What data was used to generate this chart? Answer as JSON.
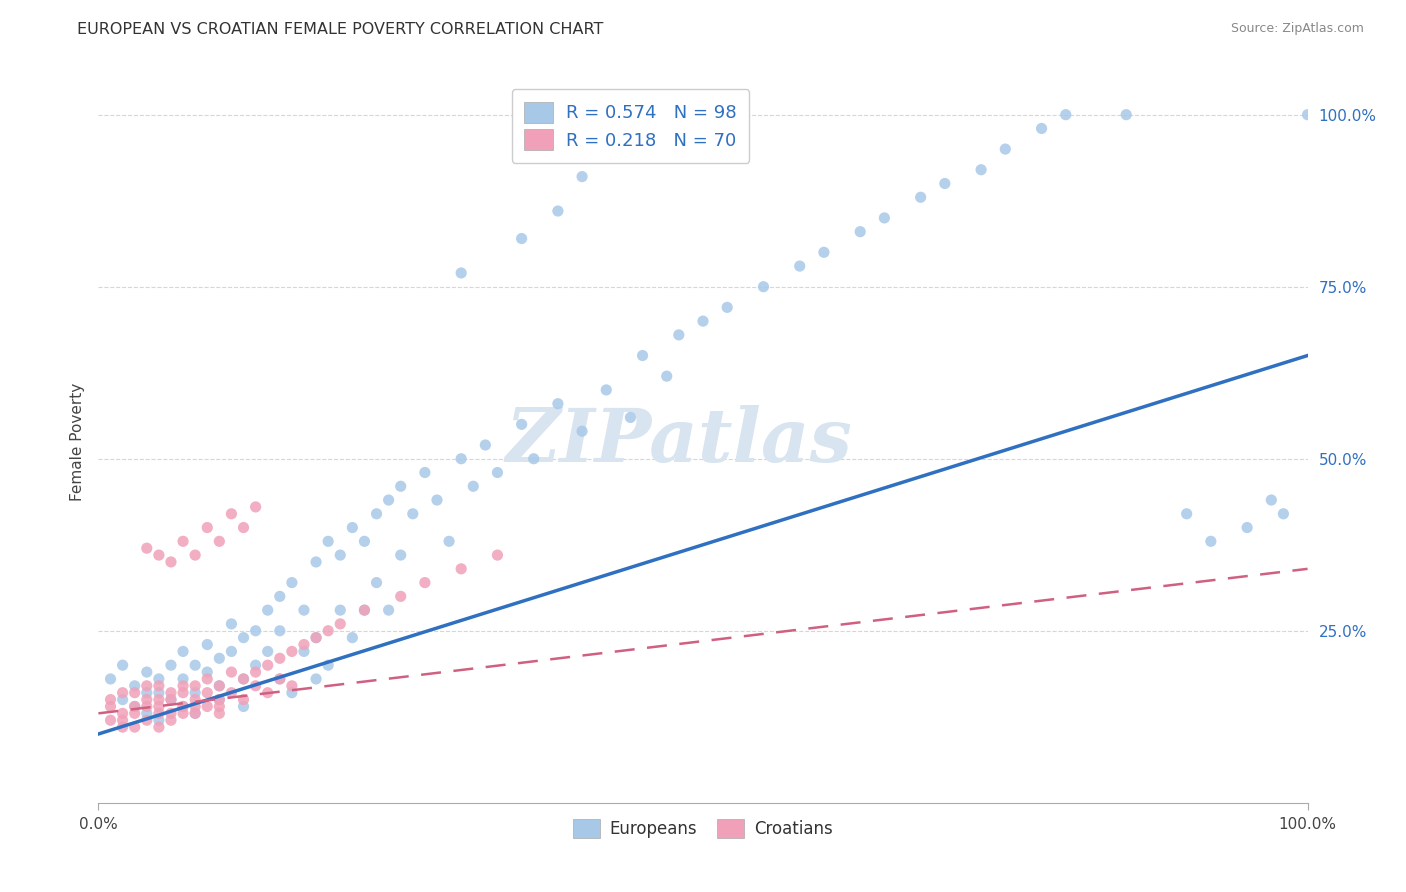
{
  "title": "EUROPEAN VS CROATIAN FEMALE POVERTY CORRELATION CHART",
  "source": "Source: ZipAtlas.com",
  "ylabel": "Female Poverty",
  "xlim": [
    0,
    1
  ],
  "ylim": [
    0,
    1.05
  ],
  "ytick_positions": [
    0.25,
    0.5,
    0.75,
    1.0
  ],
  "ytick_labels": [
    "25.0%",
    "50.0%",
    "75.0%",
    "100.0%"
  ],
  "legend_blue_label": "R = 0.574   N = 98",
  "legend_pink_label": "R = 0.218   N = 70",
  "europeans_label": "Europeans",
  "croatians_label": "Croatians",
  "blue_color": "#a8c8e8",
  "pink_color": "#f0a0b8",
  "blue_line_color": "#3070c0",
  "pink_line_color": "#d06080",
  "watermark": "ZIPatlas",
  "watermark_color": "#d8e4f0",
  "background_color": "#ffffff",
  "grid_color": "#cccccc",
  "blue_line_x0": 0.0,
  "blue_line_y0": 0.1,
  "blue_line_x1": 1.0,
  "blue_line_y1": 0.65,
  "pink_line_x0": 0.0,
  "pink_line_y0": 0.13,
  "pink_line_x1": 1.0,
  "pink_line_y1": 0.34,
  "blue_scatter_x": [
    0.01,
    0.02,
    0.02,
    0.03,
    0.03,
    0.04,
    0.04,
    0.04,
    0.05,
    0.05,
    0.05,
    0.06,
    0.06,
    0.07,
    0.07,
    0.07,
    0.08,
    0.08,
    0.08,
    0.09,
    0.09,
    0.1,
    0.1,
    0.1,
    0.11,
    0.11,
    0.12,
    0.12,
    0.12,
    0.13,
    0.13,
    0.14,
    0.14,
    0.15,
    0.15,
    0.15,
    0.16,
    0.16,
    0.17,
    0.17,
    0.18,
    0.18,
    0.18,
    0.19,
    0.19,
    0.2,
    0.2,
    0.21,
    0.21,
    0.22,
    0.22,
    0.23,
    0.23,
    0.24,
    0.24,
    0.25,
    0.25,
    0.26,
    0.27,
    0.28,
    0.29,
    0.3,
    0.31,
    0.32,
    0.33,
    0.35,
    0.36,
    0.38,
    0.4,
    0.42,
    0.44,
    0.45,
    0.47,
    0.48,
    0.5,
    0.52,
    0.55,
    0.58,
    0.6,
    0.63,
    0.65,
    0.68,
    0.7,
    0.73,
    0.75,
    0.78,
    0.8,
    0.85,
    0.9,
    0.92,
    0.95,
    0.97,
    0.98,
    1.0,
    0.3,
    0.35,
    0.38,
    0.4
  ],
  "blue_scatter_y": [
    0.18,
    0.15,
    0.2,
    0.14,
    0.17,
    0.16,
    0.19,
    0.13,
    0.18,
    0.12,
    0.16,
    0.15,
    0.2,
    0.14,
    0.18,
    0.22,
    0.16,
    0.2,
    0.13,
    0.19,
    0.23,
    0.17,
    0.21,
    0.15,
    0.22,
    0.26,
    0.18,
    0.24,
    0.14,
    0.25,
    0.2,
    0.28,
    0.22,
    0.3,
    0.18,
    0.25,
    0.32,
    0.16,
    0.28,
    0.22,
    0.35,
    0.24,
    0.18,
    0.38,
    0.2,
    0.36,
    0.28,
    0.4,
    0.24,
    0.38,
    0.28,
    0.42,
    0.32,
    0.44,
    0.28,
    0.46,
    0.36,
    0.42,
    0.48,
    0.44,
    0.38,
    0.5,
    0.46,
    0.52,
    0.48,
    0.55,
    0.5,
    0.58,
    0.54,
    0.6,
    0.56,
    0.65,
    0.62,
    0.68,
    0.7,
    0.72,
    0.75,
    0.78,
    0.8,
    0.83,
    0.85,
    0.88,
    0.9,
    0.92,
    0.95,
    0.98,
    1.0,
    1.0,
    0.42,
    0.38,
    0.4,
    0.44,
    0.42,
    1.0,
    0.77,
    0.82,
    0.86,
    0.91
  ],
  "pink_scatter_x": [
    0.01,
    0.01,
    0.01,
    0.02,
    0.02,
    0.02,
    0.02,
    0.03,
    0.03,
    0.03,
    0.03,
    0.04,
    0.04,
    0.04,
    0.04,
    0.05,
    0.05,
    0.05,
    0.05,
    0.05,
    0.06,
    0.06,
    0.06,
    0.06,
    0.07,
    0.07,
    0.07,
    0.07,
    0.08,
    0.08,
    0.08,
    0.08,
    0.09,
    0.09,
    0.09,
    0.1,
    0.1,
    0.1,
    0.1,
    0.11,
    0.11,
    0.12,
    0.12,
    0.13,
    0.13,
    0.14,
    0.14,
    0.15,
    0.15,
    0.16,
    0.16,
    0.17,
    0.18,
    0.19,
    0.2,
    0.22,
    0.25,
    0.27,
    0.3,
    0.33,
    0.04,
    0.05,
    0.06,
    0.07,
    0.08,
    0.09,
    0.1,
    0.11,
    0.12,
    0.13
  ],
  "pink_scatter_y": [
    0.14,
    0.12,
    0.15,
    0.13,
    0.11,
    0.16,
    0.12,
    0.14,
    0.13,
    0.16,
    0.11,
    0.15,
    0.12,
    0.14,
    0.17,
    0.13,
    0.15,
    0.11,
    0.14,
    0.17,
    0.16,
    0.12,
    0.15,
    0.13,
    0.14,
    0.16,
    0.13,
    0.17,
    0.15,
    0.13,
    0.17,
    0.14,
    0.16,
    0.14,
    0.18,
    0.15,
    0.13,
    0.17,
    0.14,
    0.16,
    0.19,
    0.18,
    0.15,
    0.19,
    0.17,
    0.2,
    0.16,
    0.21,
    0.18,
    0.22,
    0.17,
    0.23,
    0.24,
    0.25,
    0.26,
    0.28,
    0.3,
    0.32,
    0.34,
    0.36,
    0.37,
    0.36,
    0.35,
    0.38,
    0.36,
    0.4,
    0.38,
    0.42,
    0.4,
    0.43
  ]
}
